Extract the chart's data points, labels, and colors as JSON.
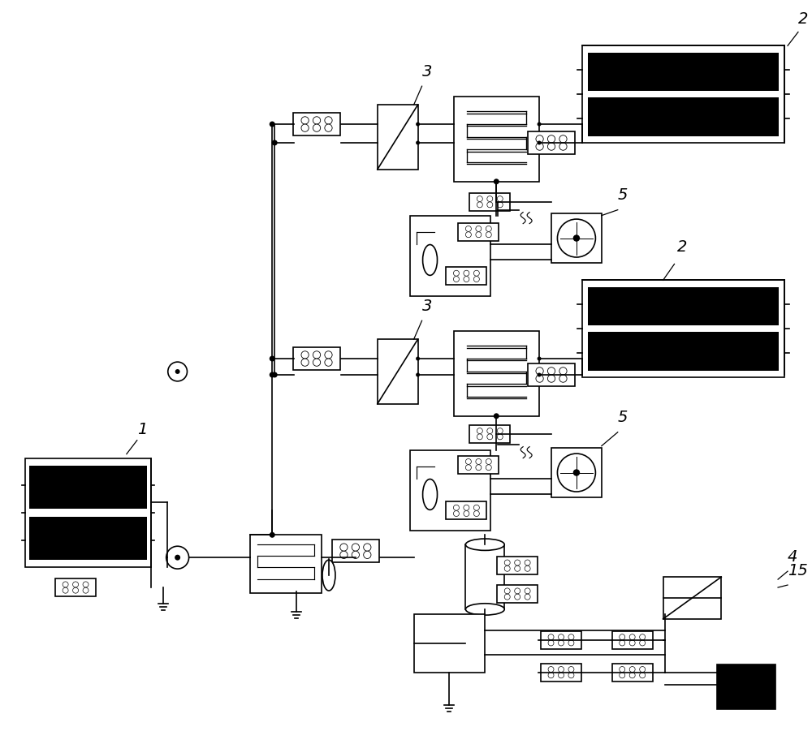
{
  "background_color": "#ffffff",
  "line_color": "#000000",
  "lw": 1.2,
  "fig_width": 10.0,
  "fig_height": 9.01,
  "dpi": 100
}
